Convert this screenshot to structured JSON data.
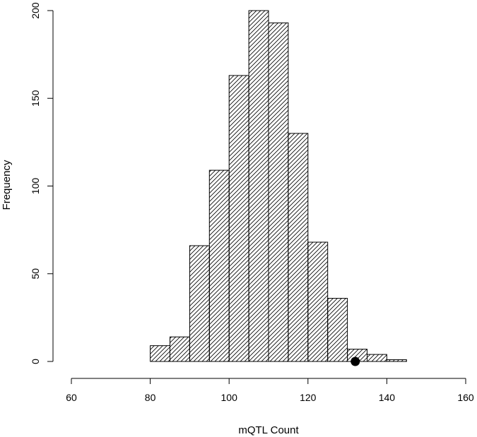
{
  "chart_data": {
    "type": "bar",
    "subtype": "histogram",
    "title": "",
    "xlabel": "mQTL Count",
    "ylabel": "Frequency",
    "xlim": [
      60,
      160
    ],
    "ylim": [
      0,
      200
    ],
    "x_ticks": [
      60,
      80,
      100,
      120,
      140,
      160
    ],
    "y_ticks": [
      0,
      50,
      100,
      150,
      200
    ],
    "bin_width": 5,
    "bins": [
      {
        "start": 80,
        "end": 85,
        "count": 9
      },
      {
        "start": 85,
        "end": 90,
        "count": 14
      },
      {
        "start": 90,
        "end": 95,
        "count": 66
      },
      {
        "start": 95,
        "end": 100,
        "count": 109
      },
      {
        "start": 100,
        "end": 105,
        "count": 163
      },
      {
        "start": 105,
        "end": 110,
        "count": 200
      },
      {
        "start": 110,
        "end": 115,
        "count": 193
      },
      {
        "start": 115,
        "end": 120,
        "count": 130
      },
      {
        "start": 120,
        "end": 125,
        "count": 68
      },
      {
        "start": 125,
        "end": 130,
        "count": 36
      },
      {
        "start": 130,
        "end": 135,
        "count": 7
      },
      {
        "start": 135,
        "end": 140,
        "count": 4
      },
      {
        "start": 140,
        "end": 145,
        "count": 1
      }
    ],
    "marker": {
      "x": 132,
      "y": 0,
      "shape": "filled-circle"
    },
    "bar_fill": "diagonal-hatch",
    "grid": false,
    "colors": {
      "bar_stroke": "#000000",
      "hatch": "#000000",
      "marker": "#000000",
      "background": "#ffffff"
    }
  }
}
